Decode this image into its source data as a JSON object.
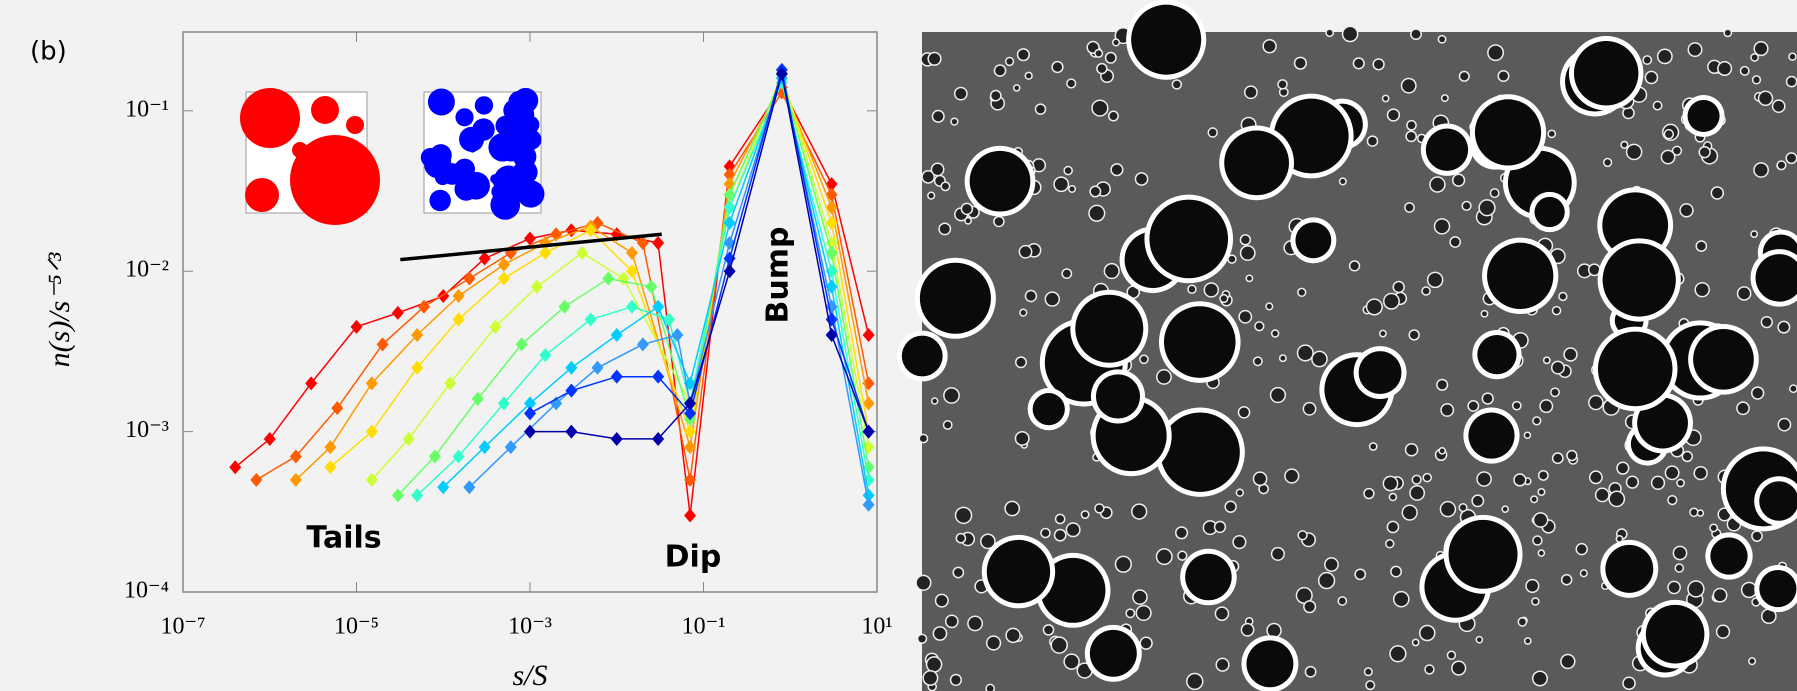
{
  "chart_data": {
    "type": "line",
    "panel_label": "(b)",
    "x_label": "s/S",
    "y_label": "n(s)/s⁻⁵ᐟ³",
    "xscale": "log",
    "yscale": "log",
    "xlim": [
      1e-07,
      10
    ],
    "ylim": [
      0.0001,
      0.31
    ],
    "xticks": [
      {
        "value": 1e-07,
        "label": "10⁻⁷"
      },
      {
        "value": 1e-05,
        "label": "10⁻⁵"
      },
      {
        "value": 0.001,
        "label": "10⁻³"
      },
      {
        "value": 0.1,
        "label": "10⁻¹"
      },
      {
        "value": 10,
        "label": "10¹"
      }
    ],
    "yticks": [
      {
        "value": 0.0001,
        "label": "10⁻⁴"
      },
      {
        "value": 0.001,
        "label": "10⁻³"
      },
      {
        "value": 0.01,
        "label": "10⁻²"
      },
      {
        "value": 0.1,
        "label": "10⁻¹"
      }
    ],
    "annotations": [
      "Tails",
      "Dip",
      "Bump"
    ],
    "fit_line": {
      "x": [
        3.2e-05,
        0.033
      ],
      "y": [
        0.0118,
        0.017
      ],
      "color": "#000000"
    },
    "series": [
      {
        "color": "#ff0000",
        "x": [
          4e-07,
          1e-06,
          3e-06,
          1e-05,
          3e-05,
          0.0001,
          0.0003,
          0.001,
          0.003,
          0.01,
          0.03,
          0.07,
          0.2,
          0.8,
          3,
          8
        ],
        "values": [
          0.0006,
          0.0009,
          0.002,
          0.0045,
          0.0055,
          0.007,
          0.012,
          0.016,
          0.018,
          0.017,
          0.015,
          0.0003,
          0.045,
          0.14,
          0.035,
          0.004
        ]
      },
      {
        "color": "#ff5a00",
        "x": [
          7e-07,
          2e-06,
          6e-06,
          2e-05,
          6e-05,
          0.0002,
          0.0006,
          0.002,
          0.006,
          0.02,
          0.07,
          0.2,
          0.8,
          3,
          8
        ],
        "values": [
          0.0005,
          0.0007,
          0.0014,
          0.0035,
          0.006,
          0.009,
          0.013,
          0.017,
          0.02,
          0.015,
          0.0005,
          0.04,
          0.13,
          0.03,
          0.002
        ]
      },
      {
        "color": "#ff9900",
        "x": [
          2e-06,
          5e-06,
          1.5e-05,
          5e-05,
          0.00015,
          0.0005,
          0.0015,
          0.005,
          0.015,
          0.07,
          0.2,
          0.8,
          3,
          8
        ],
        "values": [
          0.0005,
          0.0008,
          0.002,
          0.004,
          0.007,
          0.011,
          0.015,
          0.019,
          0.013,
          0.0008,
          0.035,
          0.15,
          0.025,
          0.0015
        ]
      },
      {
        "color": "#ffdd00",
        "x": [
          5e-06,
          1.5e-05,
          5e-05,
          0.00015,
          0.0005,
          0.0015,
          0.005,
          0.015,
          0.07,
          0.2,
          0.8,
          3,
          8
        ],
        "values": [
          0.0006,
          0.001,
          0.0025,
          0.005,
          0.009,
          0.013,
          0.018,
          0.01,
          0.001,
          0.03,
          0.16,
          0.02,
          0.001
        ]
      },
      {
        "color": "#ccff33",
        "x": [
          1.5e-05,
          4e-05,
          0.00012,
          0.0004,
          0.0012,
          0.004,
          0.012,
          0.07,
          0.2,
          0.8,
          3,
          8
        ],
        "values": [
          0.0005,
          0.0009,
          0.002,
          0.0045,
          0.008,
          0.013,
          0.009,
          0.0015,
          0.025,
          0.17,
          0.015,
          0.0008
        ]
      },
      {
        "color": "#66ff66",
        "x": [
          3e-05,
          8e-05,
          0.00025,
          0.0008,
          0.0025,
          0.008,
          0.025,
          0.07,
          0.2,
          0.8,
          3,
          8
        ],
        "values": [
          0.0004,
          0.0007,
          0.0016,
          0.0035,
          0.006,
          0.009,
          0.008,
          0.0012,
          0.03,
          0.16,
          0.013,
          0.0006
        ]
      },
      {
        "color": "#33ffcc",
        "x": [
          5e-05,
          0.00015,
          0.0005,
          0.0015,
          0.005,
          0.015,
          0.04,
          0.07,
          0.2,
          0.8,
          3,
          8
        ],
        "values": [
          0.0004,
          0.0007,
          0.0015,
          0.003,
          0.005,
          0.006,
          0.005,
          0.0015,
          0.025,
          0.15,
          0.01,
          0.0005
        ]
      },
      {
        "color": "#00ccff",
        "x": [
          0.0001,
          0.0003,
          0.001,
          0.003,
          0.01,
          0.03,
          0.07,
          0.2,
          0.8,
          3,
          8
        ],
        "values": [
          0.00045,
          0.0008,
          0.0015,
          0.0025,
          0.004,
          0.006,
          0.002,
          0.02,
          0.16,
          0.008,
          0.0004
        ]
      },
      {
        "color": "#3399ff",
        "x": [
          0.0002,
          0.0006,
          0.002,
          0.006,
          0.02,
          0.05,
          0.07,
          0.2,
          0.8,
          3,
          8
        ],
        "values": [
          0.00045,
          0.0008,
          0.0015,
          0.0025,
          0.0035,
          0.004,
          0.0015,
          0.015,
          0.17,
          0.006,
          0.00035
        ]
      },
      {
        "color": "#0033ff",
        "x": [
          0.001,
          0.003,
          0.01,
          0.03,
          0.07,
          0.2,
          0.8,
          3,
          8
        ],
        "values": [
          0.0013,
          0.0018,
          0.0022,
          0.0022,
          0.0013,
          0.012,
          0.18,
          0.005,
          0.001
        ]
      },
      {
        "color": "#0000aa",
        "x": [
          0.001,
          0.003,
          0.01,
          0.03,
          0.07,
          0.2,
          0.8,
          3,
          8
        ],
        "values": [
          0.001,
          0.001,
          0.0009,
          0.0009,
          0.0015,
          0.01,
          0.17,
          0.004,
          0.001
        ]
      }
    ]
  }
}
